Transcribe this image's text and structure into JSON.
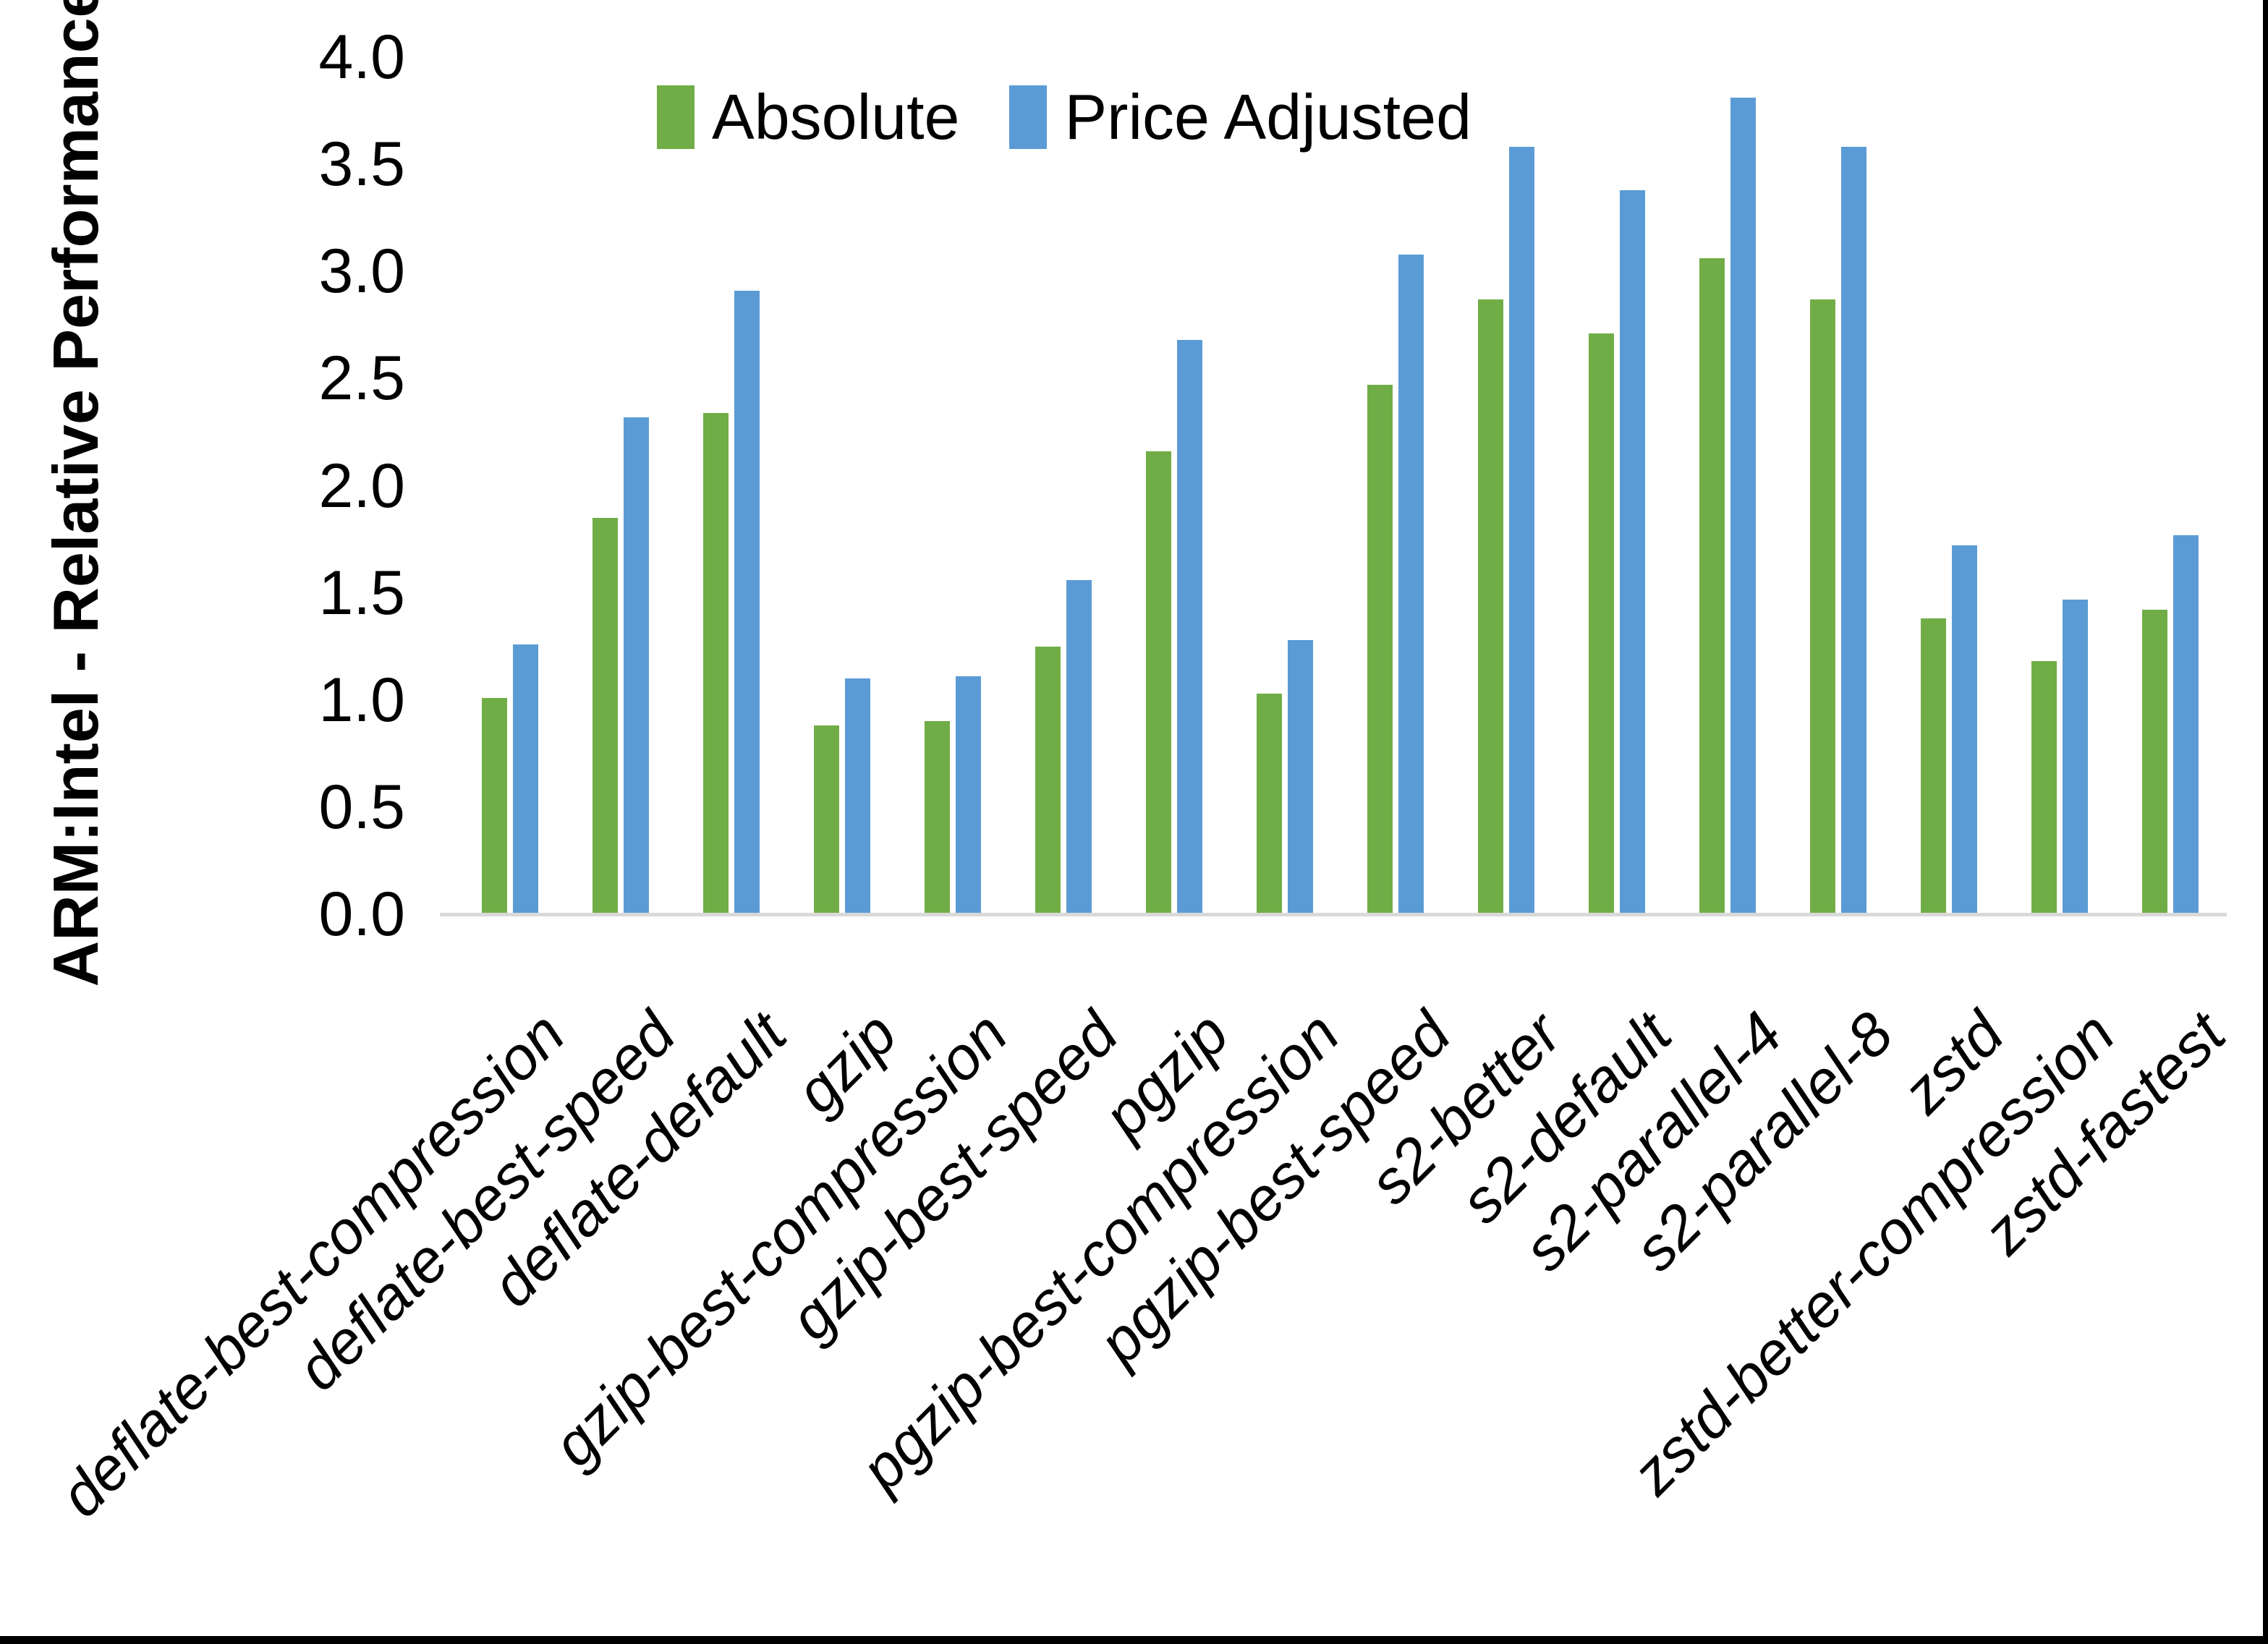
{
  "chart_data": {
    "type": "bar",
    "title": "",
    "xlabel": "",
    "ylabel": "ARM:Intel - Relative Performance",
    "ylim": [
      0.0,
      4.0
    ],
    "ytick_step": 0.5,
    "y_tick_labels": [
      "0.0",
      "0.5",
      "1.0",
      "1.5",
      "2.0",
      "2.5",
      "3.0",
      "3.5",
      "4.0"
    ],
    "grid": "off",
    "legend_position": "top-center-inside",
    "axis_line_color": "#d9d9d9",
    "categories": [
      "deflate-best-compression",
      "deflate-best-speed",
      "deflate-default",
      "gzip",
      "gzip-best-compression",
      "gzip-best-speed",
      "pgzip",
      "pgzip-best-compression",
      "pgzip-best-speed",
      "s2-better",
      "s2-default",
      "s2-parallel-4",
      "s2-parallel-8",
      "zstd",
      "zstd-better-compression",
      "zstd-fastest"
    ],
    "series": [
      {
        "name": "Absolute",
        "color": "#70AD47",
        "values": [
          1.01,
          1.85,
          2.34,
          0.88,
          0.9,
          1.25,
          2.16,
          1.03,
          2.47,
          2.87,
          2.71,
          3.06,
          2.87,
          1.38,
          1.18,
          1.42
        ]
      },
      {
        "name": "Price Adjusted",
        "color": "#5B9BD5",
        "values": [
          1.26,
          2.32,
          2.91,
          1.1,
          1.11,
          1.56,
          2.68,
          1.28,
          3.08,
          3.58,
          3.38,
          3.81,
          3.58,
          1.72,
          1.47,
          1.77
        ]
      }
    ]
  }
}
